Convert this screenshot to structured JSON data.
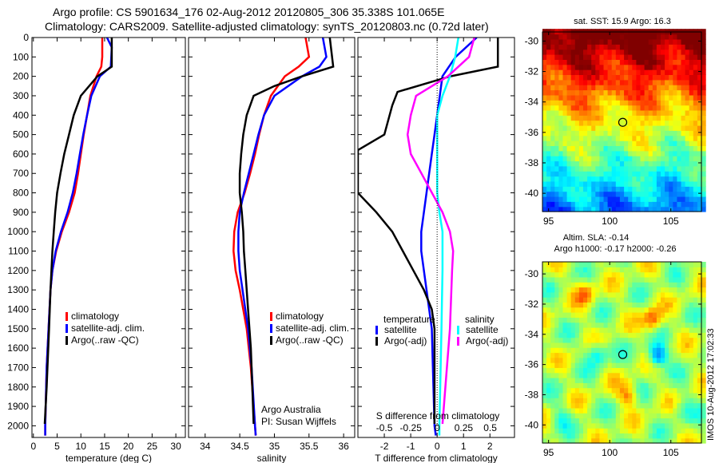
{
  "title": {
    "line1": "Argo profile: CS 5901634_176 02-Aug-2012 20120805_306 35.338S 101.065E",
    "line2": "Climatology: CARS2009. Satellite-adjusted climatology: synTS_20120803.nc (0.72d later)"
  },
  "side_label": "IMOS 10-Aug-2012 17:02:33",
  "colors": {
    "climatology": "#ff0000",
    "satellite": "#0000ff",
    "argo": "#000000",
    "sal_sat": "#00ffff",
    "sal_argo": "#ff00ff"
  },
  "chart_data": [
    {
      "type": "line",
      "id": "temperature",
      "xlabel": "temperature (deg C)",
      "xlim": [
        -0.3,
        32
      ],
      "ylim": [
        2060,
        0
      ],
      "xticks": [
        0,
        5,
        10,
        15,
        20,
        25,
        30
      ],
      "yticks": [
        0,
        100,
        200,
        300,
        400,
        500,
        600,
        700,
        800,
        900,
        1000,
        1100,
        1200,
        1300,
        1400,
        1500,
        1600,
        1700,
        1800,
        1900,
        2000
      ],
      "legend": [
        "climatology",
        "satellite-adj. clim.",
        "Argo(..raw -QC)"
      ],
      "series": [
        {
          "name": "climatology",
          "color": "#ff0000",
          "depth": [
            0,
            100,
            150,
            200,
            300,
            400,
            500,
            600,
            700,
            800,
            900,
            1000,
            1100,
            1200,
            1300,
            1500,
            1700,
            2000,
            2050
          ],
          "values": [
            14.5,
            14.5,
            14.3,
            13.3,
            12,
            11.3,
            10.6,
            10,
            9.4,
            8.7,
            7.5,
            6,
            4.8,
            4,
            3.6,
            3.2,
            2.8,
            2.5,
            2.5
          ]
        },
        {
          "name": "satellite-adj. clim.",
          "color": "#0000ff",
          "depth": [
            0,
            50,
            150,
            200,
            300,
            400,
            500,
            600,
            700,
            800,
            900,
            1000,
            1100,
            1200,
            1300,
            1500,
            1700,
            2000,
            2050
          ],
          "values": [
            15.5,
            16.5,
            16.3,
            14,
            12.2,
            11.3,
            10.5,
            9.8,
            9.1,
            8.3,
            7.2,
            5.8,
            4.7,
            4,
            3.6,
            3.2,
            2.8,
            2.5,
            2.5
          ]
        },
        {
          "name": "Argo(..raw -QC)",
          "color": "#000000",
          "depth": [
            0,
            150,
            200,
            300,
            400,
            500,
            600,
            700,
            800,
            900,
            1000,
            1100,
            1200,
            1300,
            1500,
            1800,
            1990
          ],
          "values": [
            16.5,
            16.5,
            13.5,
            10,
            8.5,
            7.5,
            6.5,
            5.7,
            5,
            4.6,
            4.3,
            4,
            3.8,
            3.6,
            3.3,
            2.8,
            2.4
          ]
        }
      ]
    },
    {
      "type": "line",
      "id": "salinity",
      "xlabel": "salinity",
      "xlim": [
        33.76,
        36.16
      ],
      "ylim": [
        2060,
        0
      ],
      "xticks": [
        34,
        34.5,
        35,
        35.5,
        36
      ],
      "legend": [
        "climatology",
        "satellite-adj. clim.",
        "Argo(..raw -QC)"
      ],
      "annotation": [
        "Argo Australia",
        "PI: Susan Wijffels"
      ],
      "series": [
        {
          "name": "climatology",
          "color": "#ff0000",
          "depth": [
            0,
            100,
            150,
            200,
            300,
            400,
            500,
            600,
            700,
            800,
            900,
            1000,
            1100,
            1200,
            1300,
            1500,
            1700,
            2000,
            2050
          ],
          "values": [
            35.45,
            35.5,
            35.35,
            35.15,
            34.95,
            34.85,
            34.78,
            34.72,
            34.65,
            34.57,
            34.47,
            34.42,
            34.41,
            34.44,
            34.5,
            34.6,
            34.66,
            34.72,
            34.73
          ]
        },
        {
          "name": "satellite-adj. clim.",
          "color": "#0000ff",
          "depth": [
            0,
            100,
            150,
            200,
            300,
            400,
            500,
            600,
            700,
            800,
            900,
            1000,
            1100,
            1200,
            1300,
            1500,
            1700,
            2000,
            2050
          ],
          "values": [
            35.7,
            35.75,
            35.65,
            35.4,
            35.0,
            34.85,
            34.77,
            34.7,
            34.63,
            34.56,
            34.5,
            34.48,
            34.48,
            34.5,
            34.54,
            34.62,
            34.67,
            34.72,
            34.73
          ]
        },
        {
          "name": "Argo(..raw -QC)",
          "color": "#000000",
          "depth": [
            0,
            150,
            200,
            250,
            300,
            400,
            500,
            600,
            700,
            800,
            900,
            1000,
            1100,
            1200,
            1400,
            1600,
            1990
          ],
          "values": [
            35.8,
            35.85,
            35.4,
            35.0,
            34.7,
            34.6,
            34.55,
            34.52,
            34.5,
            34.5,
            34.53,
            34.55,
            34.56,
            34.58,
            34.62,
            34.66,
            34.7
          ]
        }
      ]
    },
    {
      "type": "line",
      "id": "differences",
      "xlabel": "T difference from climatology",
      "xlabel2": "S difference from climatology",
      "xlim": [
        -3,
        2.93
      ],
      "xlim_s": [
        -0.75,
        0.73
      ],
      "ylim": [
        2060,
        0
      ],
      "xticks": [
        -2,
        -1,
        0,
        1,
        2
      ],
      "xticks_s": [
        "-0.5",
        "-0.25",
        "0",
        "0.25",
        "0.5"
      ],
      "legend": {
        "temperature": "temperature",
        "salinity": "salinity",
        "items": [
          "satellite",
          "Argo(-adj)",
          "satellite",
          "Argo(-adj)"
        ]
      },
      "series": [
        {
          "name": "T satellite",
          "axis": "T",
          "color": "#0000ff",
          "depth": [
            0,
            100,
            200,
            300,
            400,
            500,
            600,
            700,
            800,
            900,
            1000,
            1100,
            1200,
            1300,
            1500,
            2000,
            2050
          ],
          "values": [
            1.5,
            0.7,
            0.2,
            0.1,
            0,
            -0.1,
            -0.2,
            -0.3,
            -0.4,
            -0.5,
            -0.6,
            -0.6,
            -0.5,
            -0.4,
            -0.2,
            -0.1,
            -0.05
          ]
        },
        {
          "name": "T Argo(-adj)",
          "axis": "T",
          "color": "#000000",
          "depth": [
            0,
            150,
            200,
            280,
            350,
            500,
            580,
            800,
            900,
            1000,
            1100,
            1200,
            1300,
            1400,
            1500,
            1990
          ],
          "values": [
            2.3,
            2.3,
            0.5,
            -1.5,
            -1.7,
            -2.0,
            -3.0,
            -3.0,
            -2.3,
            -1.7,
            -1.3,
            -0.9,
            -0.5,
            -0.2,
            -0.1,
            -0.1
          ]
        },
        {
          "name": "S satellite",
          "axis": "S",
          "color": "#00ffff",
          "depth": [
            0,
            100,
            200,
            300,
            400,
            600,
            800,
            900,
            1000,
            1200,
            1500,
            2000,
            2050
          ],
          "values": [
            0.2,
            0.17,
            0.12,
            0.05,
            0,
            0,
            0,
            0.02,
            0.05,
            0.05,
            0.04,
            0.02,
            0.02
          ]
        },
        {
          "name": "S Argo(-adj)",
          "axis": "S",
          "color": "#ff00ff",
          "depth": [
            0,
            100,
            200,
            300,
            400,
            500,
            600,
            700,
            800,
            900,
            1000,
            1100,
            1200,
            1500,
            1990
          ],
          "values": [
            0.35,
            0.3,
            0.1,
            -0.2,
            -0.25,
            -0.28,
            -0.25,
            -0.15,
            -0.05,
            0.05,
            0.12,
            0.15,
            0.14,
            0.12,
            0.05
          ]
        }
      ]
    },
    {
      "type": "heatmap",
      "id": "sst-map",
      "title": "sat. SST: 15.9 Argo: 16.3",
      "xlim": [
        94.5,
        107.5
      ],
      "ylim": [
        -41.2,
        -29.4
      ],
      "xticks": [
        95,
        100,
        105
      ],
      "yticks": [
        -30,
        -32,
        -34,
        -36,
        -38,
        -40
      ],
      "marker": {
        "lon": 101.065,
        "lat": -35.338
      }
    },
    {
      "type": "heatmap",
      "id": "sla-map",
      "title": [
        "Altim. SLA: -0.14",
        "Argo h1000: -0.17 h2000: -0.26"
      ],
      "xlim": [
        94.5,
        107.5
      ],
      "ylim": [
        -41.2,
        -29.2
      ],
      "xticks": [
        95,
        100,
        105
      ],
      "yticks": [
        -30,
        -32,
        -34,
        -36,
        -38,
        -40
      ],
      "marker": {
        "lon": 101.065,
        "lat": -35.338
      }
    }
  ]
}
